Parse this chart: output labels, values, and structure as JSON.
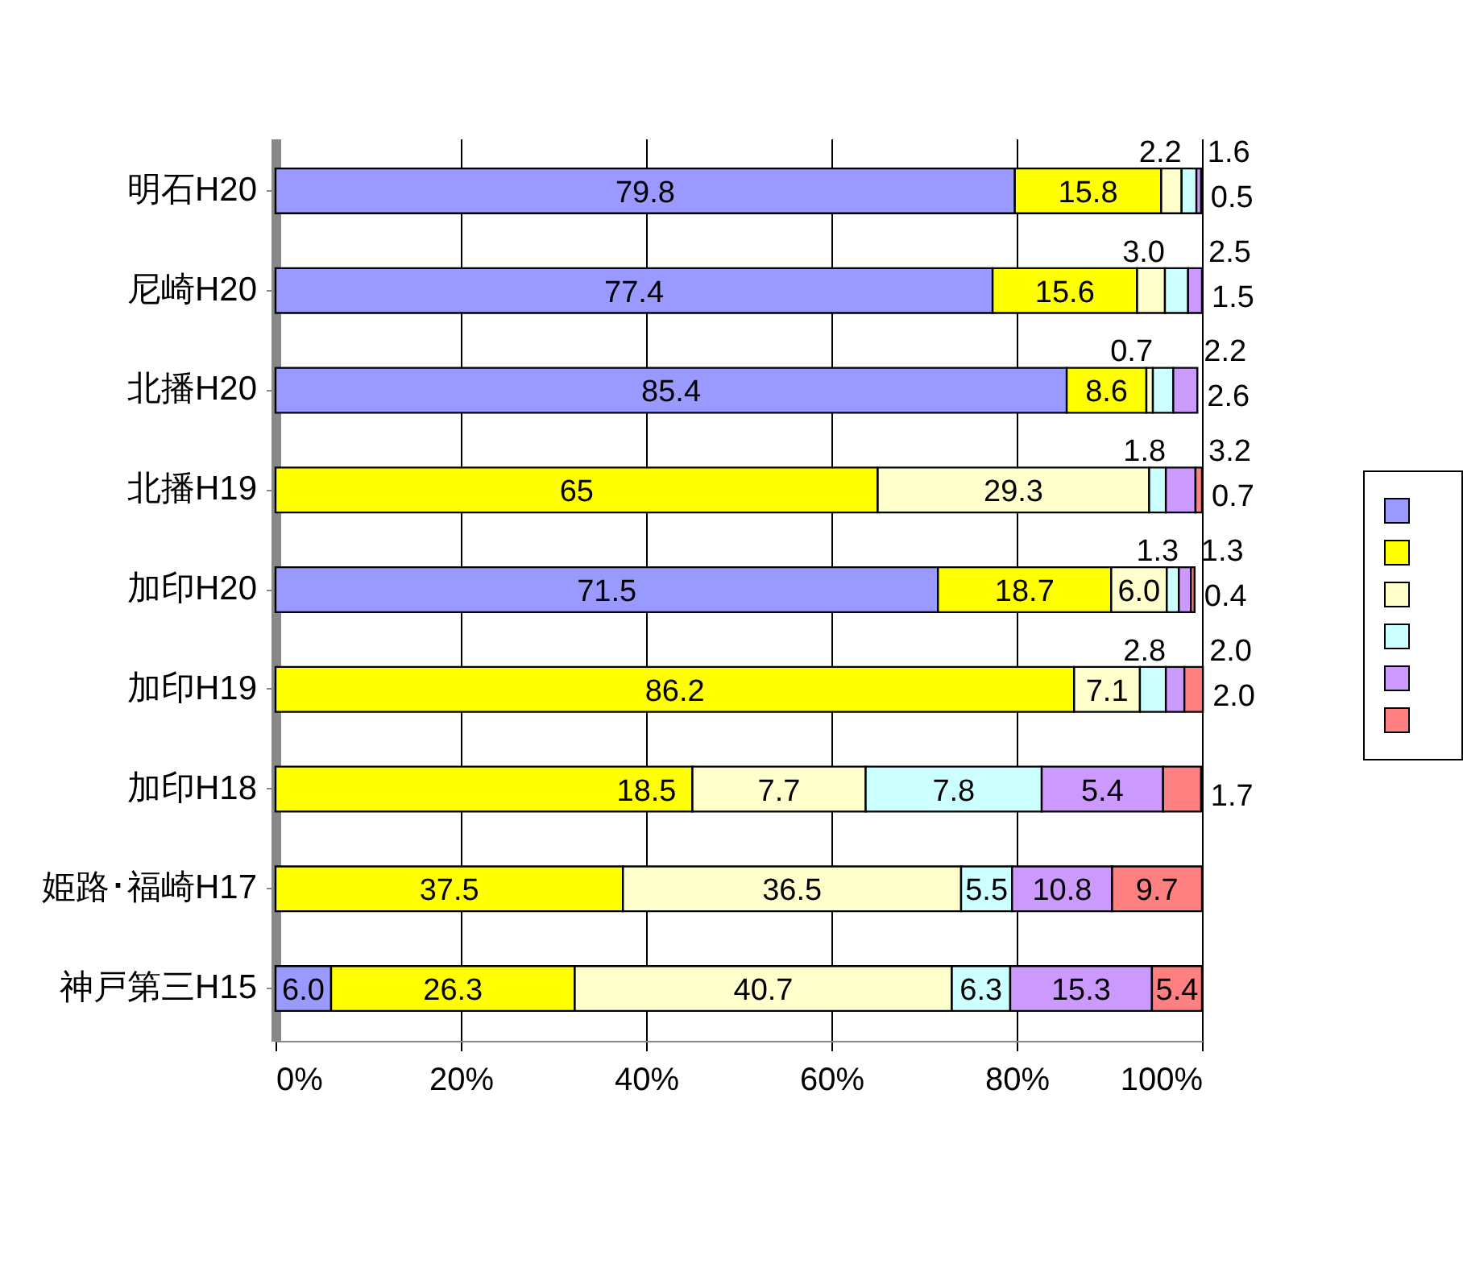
{
  "chart_data": {
    "type": "bar",
    "orientation": "horizontal",
    "stacked": true,
    "categories": [
      "明石H20",
      "尼崎H20",
      "北播H20",
      "北播H19",
      "加印H20",
      "加印H19",
      "加印H18",
      "姫路･福崎H17",
      "神戸第三H15"
    ],
    "series": [
      {
        "color": "#9999ff",
        "values": [
          79.8,
          77.4,
          85.4,
          null,
          71.5,
          null,
          null,
          null,
          6.0
        ],
        "value_labels": [
          "79.8",
          "77.4",
          "85.4",
          null,
          "71.5",
          null,
          null,
          null,
          "6.0"
        ]
      },
      {
        "color": "#ffff00",
        "values": [
          15.8,
          15.6,
          8.6,
          65,
          18.7,
          86.2,
          45.0,
          37.5,
          26.3
        ],
        "value_labels": [
          "15.8",
          "15.6",
          "8.6",
          "65",
          "18.7",
          "86.2",
          null,
          "37.5",
          "26.3"
        ]
      },
      {
        "color": "#ffffcc",
        "values": [
          2.2,
          3.0,
          0.7,
          29.3,
          6.0,
          7.1,
          18.7,
          36.5,
          40.7
        ],
        "value_labels": [
          "2.2",
          "3.0",
          "0.7",
          "29.3",
          "6.0",
          "7.1",
          null,
          "36.5",
          "40.7"
        ]
      },
      {
        "color": "#ccffff",
        "values": [
          1.6,
          2.5,
          2.2,
          1.8,
          1.3,
          2.8,
          19.0,
          5.5,
          6.3
        ],
        "value_labels": [
          "1.6",
          "2.5",
          "2.2",
          "1.8",
          "1.3",
          "2.8",
          null,
          "5.5",
          "6.3"
        ]
      },
      {
        "color": "#cc99ff",
        "values": [
          0.5,
          1.5,
          2.6,
          3.2,
          1.3,
          2.0,
          13.1,
          10.8,
          15.3
        ],
        "value_labels": [
          "0.5",
          "1.5",
          "2.6",
          "3.2",
          "1.3",
          "2.0",
          null,
          "10.8",
          "15.3"
        ]
      },
      {
        "color": "#ff8080",
        "values": [
          null,
          null,
          null,
          0.7,
          0.4,
          2.0,
          4.1,
          9.7,
          5.4
        ],
        "value_labels": [
          null,
          null,
          null,
          "0.7",
          "0.4",
          "2.0",
          null,
          "9.7",
          "5.4"
        ]
      }
    ],
    "annotations": [
      {
        "text": "18.5",
        "x": 45.0,
        "y": "加印H18"
      },
      {
        "text": "7.7",
        "x": 63.7,
        "y": "加印H18"
      },
      {
        "text": "7.8",
        "x": 82.7,
        "y": "加印H18"
      },
      {
        "text": "5.4",
        "x": 95.8,
        "y": "加印H18"
      },
      {
        "text": "1.7",
        "x": 99.9,
        "y": "加印H18"
      }
    ],
    "xlim": [
      0,
      100
    ],
    "xticks": [
      {
        "value": 0,
        "label": "0%"
      },
      {
        "value": 20,
        "label": "20%"
      },
      {
        "value": 40,
        "label": "40%"
      },
      {
        "value": 60,
        "label": "60%"
      },
      {
        "value": 80,
        "label": "80%"
      },
      {
        "value": 100,
        "label": "100%"
      }
    ],
    "grid": "x"
  }
}
